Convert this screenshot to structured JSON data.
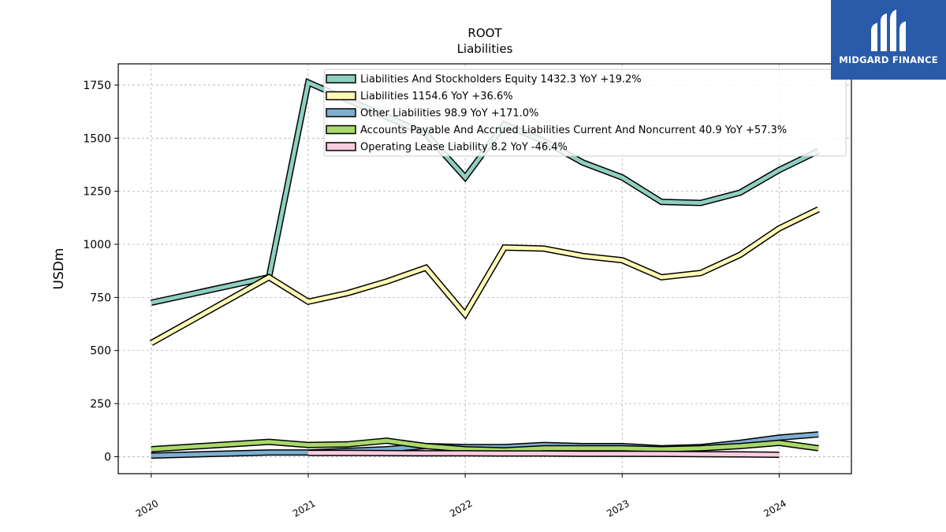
{
  "chart_data": {
    "type": "line",
    "title": "ROOT",
    "subtitle": "Liabilities",
    "ylabel": "USDm",
    "xlabel": "",
    "ylim": [
      -80,
      1850
    ],
    "xlim": [
      2019.79,
      2024.46
    ],
    "yticks": [
      0,
      250,
      500,
      750,
      1000,
      1250,
      1500,
      1750
    ],
    "xticks": [
      "2020",
      "2021",
      "2022",
      "2023",
      "2024"
    ],
    "grid": true,
    "legend_position": "top-right",
    "series": [
      {
        "name": "Liabilities And Stockholders Equity",
        "label": "Liabilities And Stockholders Equity  1432.3 YoY +19.2%",
        "color": "#8ecfc0",
        "points": [
          [
            2020.0,
            725
          ],
          [
            2020.75,
            845
          ],
          [
            2021.0,
            1762
          ],
          [
            2021.75,
            1520
          ],
          [
            2022.0,
            1315
          ],
          [
            2022.25,
            1565
          ],
          [
            2022.5,
            1487
          ],
          [
            2022.75,
            1385
          ],
          [
            2023.0,
            1315
          ],
          [
            2023.25,
            1200
          ],
          [
            2023.5,
            1195
          ],
          [
            2023.75,
            1243
          ],
          [
            2024.0,
            1350
          ],
          [
            2024.25,
            1440
          ]
        ]
      },
      {
        "name": "Liabilities",
        "label": "Liabilities  1154.6 YoY +36.6%",
        "color": "#fdfab5",
        "points": [
          [
            2020.0,
            535
          ],
          [
            2020.75,
            845
          ],
          [
            2021.0,
            730
          ],
          [
            2021.25,
            770
          ],
          [
            2021.5,
            825
          ],
          [
            2021.75,
            890
          ],
          [
            2022.0,
            670
          ],
          [
            2022.25,
            985
          ],
          [
            2022.5,
            980
          ],
          [
            2022.75,
            945
          ],
          [
            2023.0,
            925
          ],
          [
            2023.25,
            845
          ],
          [
            2023.5,
            865
          ],
          [
            2023.75,
            950
          ],
          [
            2024.0,
            1075
          ],
          [
            2024.25,
            1165
          ]
        ]
      },
      {
        "name": "Other Liabilities",
        "label": "Other Liabilities  98.9 YoY +171.0%",
        "color": "#7eaed1",
        "points": [
          [
            2020.0,
            5
          ],
          [
            2020.75,
            20
          ],
          [
            2021.0,
            20
          ],
          [
            2021.5,
            35
          ],
          [
            2021.75,
            50
          ],
          [
            2022.0,
            45
          ],
          [
            2022.25,
            45
          ],
          [
            2022.5,
            55
          ],
          [
            2022.75,
            50
          ],
          [
            2023.0,
            50
          ],
          [
            2023.25,
            40
          ],
          [
            2023.5,
            45
          ],
          [
            2023.75,
            65
          ],
          [
            2024.0,
            90
          ],
          [
            2024.25,
            105
          ]
        ]
      },
      {
        "name": "Accounts Payable And Accrued Liabilities Current And Noncurrent",
        "label": "Accounts Payable And Accrued Liabilities Current And Noncurrent  40.9 YoY +57.3%",
        "color": "#a8d96a",
        "points": [
          [
            2020.0,
            35
          ],
          [
            2020.75,
            70
          ],
          [
            2021.0,
            55
          ],
          [
            2021.25,
            58
          ],
          [
            2021.5,
            75
          ],
          [
            2021.75,
            50
          ],
          [
            2022.0,
            35
          ],
          [
            2022.25,
            30
          ],
          [
            2022.5,
            40
          ],
          [
            2022.75,
            40
          ],
          [
            2023.0,
            40
          ],
          [
            2023.25,
            35
          ],
          [
            2023.5,
            40
          ],
          [
            2023.75,
            50
          ],
          [
            2024.0,
            65
          ],
          [
            2024.25,
            40
          ]
        ]
      },
      {
        "name": "Operating Lease Liability",
        "label": "Operating Lease Liability  8.2 YoY -46.4%",
        "color": "#fbcbe0",
        "points": [
          [
            2021.0,
            18
          ],
          [
            2021.25,
            18
          ],
          [
            2021.5,
            17
          ],
          [
            2021.75,
            16
          ],
          [
            2022.0,
            16
          ],
          [
            2022.25,
            15
          ],
          [
            2022.5,
            15
          ],
          [
            2022.75,
            14
          ],
          [
            2023.0,
            14
          ],
          [
            2023.25,
            13
          ],
          [
            2023.5,
            12
          ],
          [
            2023.75,
            11
          ],
          [
            2024.0,
            9
          ]
        ]
      }
    ]
  },
  "branding": {
    "logo_text": "MIDGARD FINANCE",
    "logo_color": "#2a5bab"
  }
}
